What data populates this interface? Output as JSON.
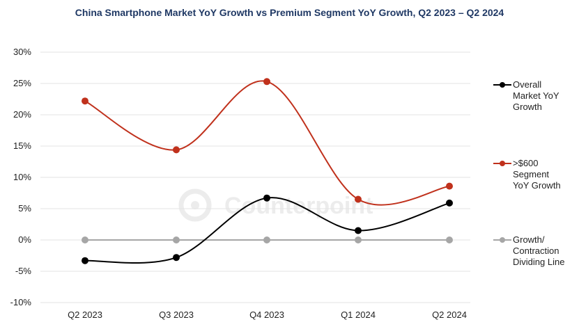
{
  "chart_data": {
    "type": "line",
    "title": "China Smartphone Market YoY Growth vs Premium Segment YoY Growth, Q2 2023 – Q2 2024",
    "categories": [
      "Q2 2023",
      "Q3 2023",
      "Q4 2023",
      "Q1 2024",
      "Q2 2024"
    ],
    "ylim": [
      -10,
      30
    ],
    "yticks": [
      -10,
      -5,
      0,
      5,
      10,
      15,
      20,
      25,
      30
    ],
    "ytick_labels": [
      "-10%",
      "-5%",
      "0%",
      "5%",
      "10%",
      "15%",
      "20%",
      "25%",
      "30%"
    ],
    "grid": true,
    "legend_position": "right",
    "series": [
      {
        "name": "Overall Market YoY Growth",
        "name_lines": [
          "Overall",
          "Market YoY",
          "Growth"
        ],
        "color": "#000000",
        "values": [
          -3.3,
          -2.8,
          6.7,
          1.5,
          5.9
        ]
      },
      {
        "name": ">$600 Segment YoY Growth",
        "name_lines": [
          ">$600",
          "Segment",
          "YoY Growth"
        ],
        "color": "#c0311c",
        "values": [
          22.2,
          14.4,
          25.3,
          6.5,
          8.6
        ]
      },
      {
        "name": "Growth/ Contraction Dividing Line",
        "name_lines": [
          "Growth/",
          "Contraction",
          "Dividing Line"
        ],
        "color": "#a6a6a6",
        "values": [
          0,
          0,
          0,
          0,
          0
        ]
      }
    ]
  },
  "watermark": {
    "text": "Counterpoint"
  }
}
